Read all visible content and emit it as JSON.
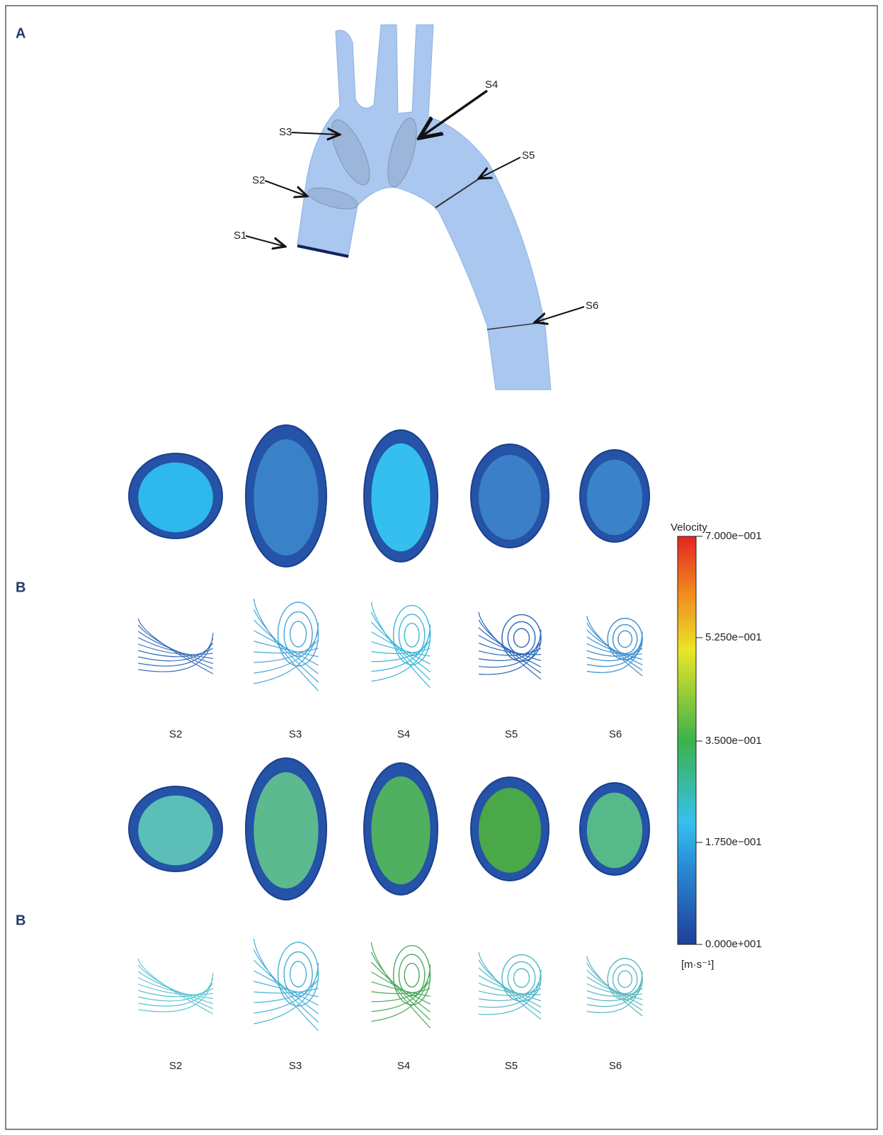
{
  "panel_a": {
    "label": "A",
    "sections": [
      "S1",
      "S2",
      "S3",
      "S4",
      "S5",
      "S6"
    ]
  },
  "panel_b": [
    {
      "label": "B",
      "sections": [
        "S2",
        "S3",
        "S4",
        "S5",
        "S6"
      ]
    },
    {
      "label": "B",
      "sections": [
        "S2",
        "S3",
        "S4",
        "S5",
        "S6"
      ]
    }
  ],
  "colorbar": {
    "title": "Velocity",
    "ticks": [
      "7.000e−001",
      "5.250e−001",
      "3.500e−001",
      "1.750e−001",
      "0.000e+001"
    ],
    "unit": "[m·s⁻¹]"
  }
}
